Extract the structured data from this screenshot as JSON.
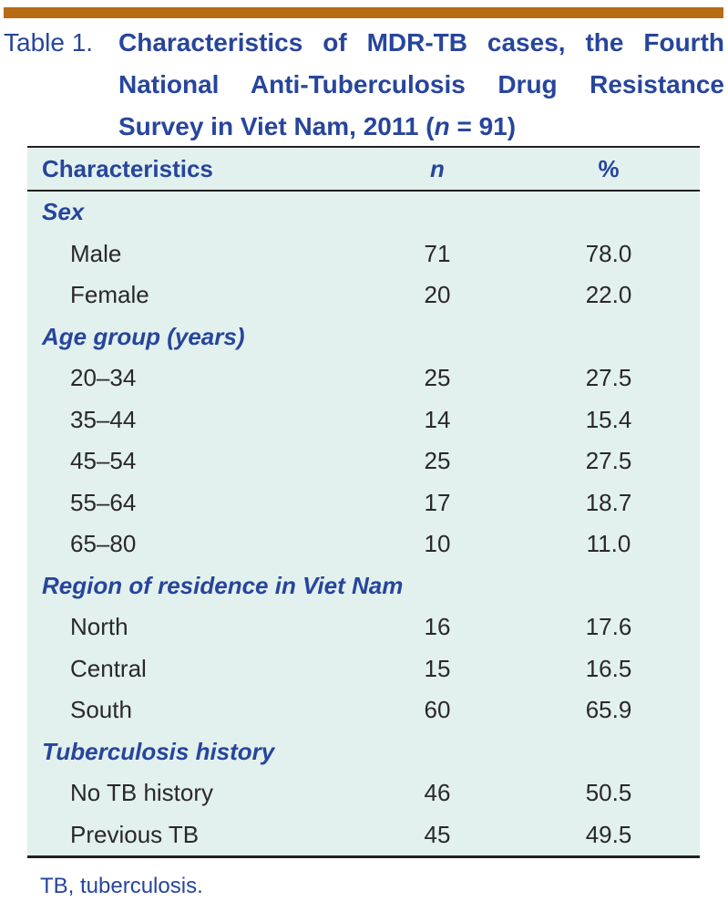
{
  "colors": {
    "accent_bar": "#B76B12",
    "heading_blue": "#27459C",
    "body_text": "#2B2829",
    "table_background": "#E2F1EE",
    "rule": "#231F20"
  },
  "title": {
    "label": "Table 1.",
    "line1": "Characteristics of MDR-TB cases, the Fourth",
    "line2": "National Anti-Tuberculosis Drug Resistance",
    "line3_pre": "Survey in Viet Nam, 2011 (",
    "line3_italic": "n",
    "line3_post": " = 91)"
  },
  "table": {
    "headers": {
      "characteristics": "Characteristics",
      "n": "n",
      "percent": "%"
    },
    "sections": [
      {
        "label": "Sex",
        "rows": [
          {
            "label": "Male",
            "n": "71",
            "percent": "78.0"
          },
          {
            "label": "Female",
            "n": "20",
            "percent": "22.0"
          }
        ]
      },
      {
        "label": "Age group (years)",
        "rows": [
          {
            "label": "20–34",
            "n": "25",
            "percent": "27.5"
          },
          {
            "label": "35–44",
            "n": "14",
            "percent": "15.4"
          },
          {
            "label": "45–54",
            "n": "25",
            "percent": "27.5"
          },
          {
            "label": "55–64",
            "n": "17",
            "percent": "18.7"
          },
          {
            "label": "65–80",
            "n": "10",
            "percent": "11.0"
          }
        ]
      },
      {
        "label": "Region of residence in Viet Nam",
        "rows": [
          {
            "label": "North",
            "n": "16",
            "percent": "17.6"
          },
          {
            "label": "Central",
            "n": "15",
            "percent": "16.5"
          },
          {
            "label": "South",
            "n": "60",
            "percent": "65.9"
          }
        ]
      },
      {
        "label": "Tuberculosis history",
        "rows": [
          {
            "label": "No TB history",
            "n": "46",
            "percent": "50.5"
          },
          {
            "label": "Previous TB",
            "n": "45",
            "percent": "49.5"
          }
        ]
      }
    ],
    "footnote": "TB, tuberculosis."
  }
}
